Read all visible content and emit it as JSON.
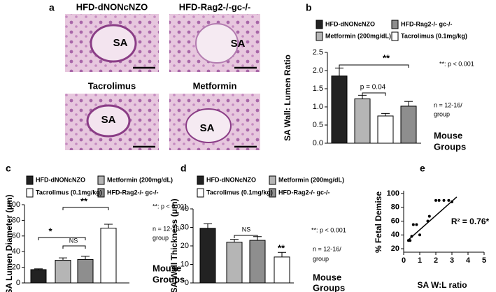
{
  "panel_a": {
    "panel": "a",
    "images": [
      {
        "label": "HFD-dNONcNZO",
        "tag": "SA"
      },
      {
        "label": "HFD-Rag2-/-gc-/-",
        "tag": "SA"
      },
      {
        "label": "Tacrolimus",
        "tag": "SA"
      },
      {
        "label": "Metformin",
        "tag": "SA"
      }
    ]
  },
  "chart_data": [
    {
      "type": "bar",
      "panel": "b",
      "y_label": "SA Wall: Lumen Ratio",
      "series": [
        {
          "name": "HFD-dNONcNZO",
          "color": "#222222",
          "values": [
            1.85
          ],
          "errors": [
            0.22
          ]
        },
        {
          "name": "Metformin (200mg/dL)",
          "color": "#b5b5b5",
          "values": [
            1.22
          ],
          "errors": [
            0.1
          ]
        },
        {
          "name": "Tacrolimus (0.1mg/kg)",
          "color": "#ffffff",
          "values": [
            0.75
          ],
          "errors": [
            0.07
          ]
        },
        {
          "name": "HFD-Rag2-/- gc-/-",
          "color": "#8e8e8e",
          "values": [
            1.02
          ],
          "errors": [
            0.13
          ]
        }
      ],
      "ylim": [
        0,
        2.5
      ],
      "yticks": [
        {
          "value": 0,
          "label": "0.0"
        },
        0.5,
        {
          "value": 1,
          "label": "1.0"
        },
        1.5,
        {
          "value": 2,
          "label": "2.0"
        },
        2.5
      ],
      "annotations": [
        "**",
        "**: p < 0.001",
        "p = 0.04",
        "n = 12-16/",
        "group",
        "Mouse",
        "Groups"
      ]
    },
    {
      "type": "bar",
      "panel": "c",
      "y_label": "SA Lumen Diameter (μm)",
      "series": [
        {
          "name": "HFD-dNONcNZO",
          "color": "#222222",
          "values": [
            17
          ],
          "errors": [
            1
          ]
        },
        {
          "name": "Metformin (200mg/dL)",
          "color": "#b5b5b5",
          "values": [
            29
          ],
          "errors": [
            3
          ]
        },
        {
          "name": "HFD-Rag2-/- gc-/-",
          "color": "#8e8e8e",
          "values": [
            30
          ],
          "errors": [
            4
          ]
        },
        {
          "name": "Tacrolimus (0.1mg/kg)",
          "color": "#ffffff",
          "values": [
            70
          ],
          "errors": [
            5
          ]
        }
      ],
      "ylim": [
        0,
        100
      ],
      "yticks": [
        0,
        20,
        40,
        60,
        80,
        100
      ],
      "annotations": [
        "**",
        "**: p < 0.001",
        "*",
        "NS",
        "n = 12-16/",
        "group",
        "Mouse",
        "Groups"
      ]
    },
    {
      "type": "bar",
      "panel": "d",
      "y_label": "SA Wall Thickness (μm)",
      "series": [
        {
          "name": "HFD-dNONcNZO",
          "color": "#222222",
          "values": [
            29.5
          ],
          "errors": [
            2.5
          ]
        },
        {
          "name": "Metformin (200mg/dL)",
          "color": "#b5b5b5",
          "values": [
            22
          ],
          "errors": [
            1.5
          ]
        },
        {
          "name": "HFD-Rag2-/- gc-/-",
          "color": "#8e8e8e",
          "values": [
            23
          ],
          "errors": [
            2
          ]
        },
        {
          "name": "Tacrolimus (0.1mg/kg)",
          "color": "#ffffff",
          "values": [
            14
          ],
          "errors": [
            2.5
          ]
        }
      ],
      "ylim": [
        0,
        40
      ],
      "yticks": [
        0,
        10,
        20,
        30,
        40
      ],
      "annotations": [
        "NS",
        "**",
        "**: p < 0.001",
        "n = 12-16/",
        "group",
        "Mouse",
        "Groups"
      ]
    },
    {
      "type": "scatter",
      "panel": "e",
      "x_label": "SA W:L ratio",
      "y_label": "% Fetal Demise",
      "color": "#000000",
      "x": [
        0.3,
        0.4,
        0.5,
        0.6,
        0.8,
        1.0,
        1.5,
        1.6,
        2.0,
        2.2,
        2.5,
        2.8,
        3.0
      ],
      "y": [
        32,
        32,
        38,
        55,
        55,
        40,
        60,
        67,
        90,
        90,
        90,
        90,
        88
      ],
      "fit": {
        "x": [
          0.3,
          3.3
        ],
        "y": [
          33,
          95
        ]
      },
      "xlim": [
        0,
        5
      ],
      "xticks": [
        0,
        1,
        2,
        3,
        4,
        5
      ],
      "ylim": [
        15,
        100
      ],
      "yticks": [
        20,
        40,
        60,
        80,
        100
      ],
      "annotations": [
        "R² = 0.76*"
      ]
    }
  ]
}
